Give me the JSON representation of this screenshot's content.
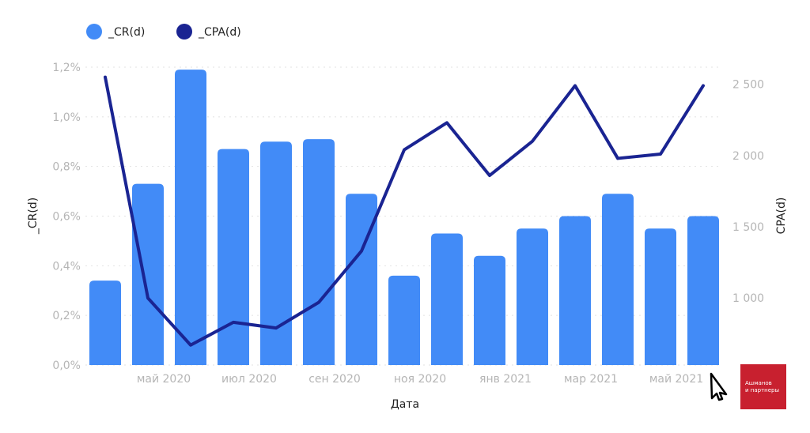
{
  "chart_data": {
    "type": "bar+line",
    "title": "",
    "xlabel": "Дата",
    "ylabel_left": "_CR(d)",
    "ylabel_right": "CPA(d)",
    "legend_position": "top-left",
    "grid": true,
    "x_ticks": [
      "май 2020",
      "июл 2020",
      "сен 2020",
      "ноя 2020",
      "янв 2021",
      "мар 2021",
      "май 2021"
    ],
    "y_left_ticks": [
      "0,0%",
      "0,2%",
      "0,4%",
      "0,6%",
      "0,8%",
      "1,0%",
      "1,2%"
    ],
    "y_right_ticks": [
      "1 000",
      "1 500",
      "2 000",
      "2 500"
    ],
    "ylim_left": [
      0,
      1.2
    ],
    "ylim_right": [
      530,
      2620
    ],
    "series": [
      {
        "name": "_CR(d)",
        "type": "bar",
        "axis": "left",
        "color": "#428bf7",
        "values": [
          0.34,
          0.73,
          1.19,
          0.87,
          0.9,
          0.91,
          0.69,
          0.36,
          0.53,
          0.44,
          0.55,
          0.6,
          0.69,
          0.55,
          0.6
        ]
      },
      {
        "name": "_CPA(d)",
        "type": "line",
        "axis": "right",
        "color": "#1a2492",
        "values": [
          2550,
          1000,
          670,
          830,
          790,
          970,
          1330,
          2040,
          2230,
          1860,
          2100,
          2490,
          1980,
          2010,
          2490
        ]
      }
    ]
  },
  "legend_dot_colors": [
    "#428bf7",
    "#1a2492"
  ],
  "logo": {
    "line1": "Ашманов",
    "line2": "и партнеры",
    "color": "#c8202f"
  }
}
